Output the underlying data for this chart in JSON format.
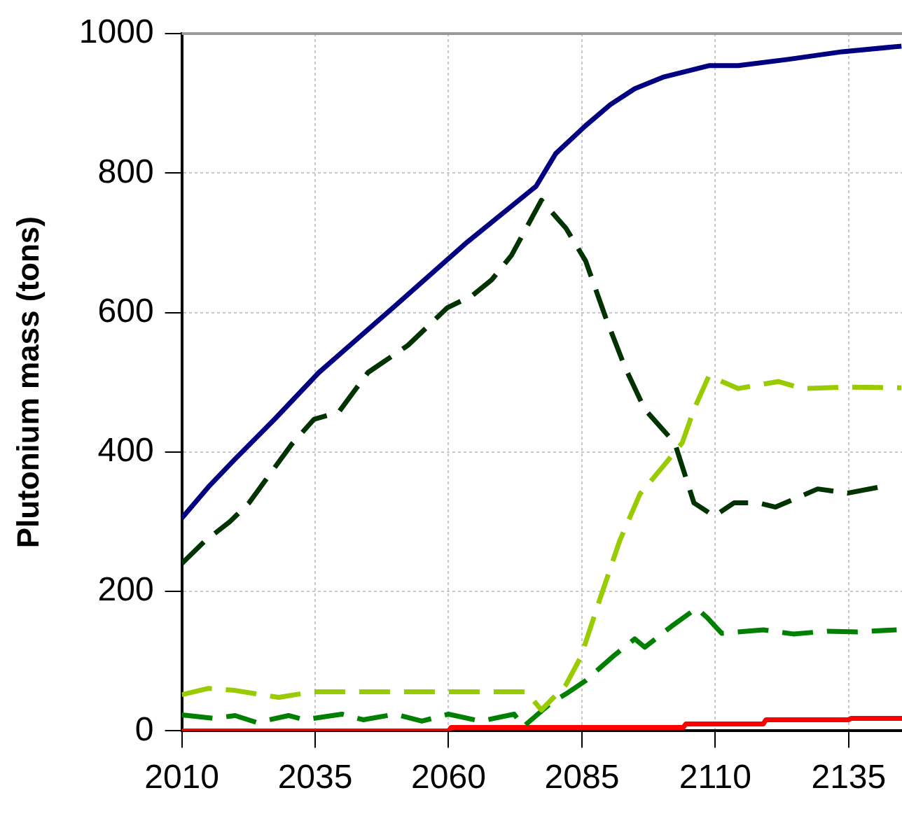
{
  "chart_data": {
    "type": "line",
    "ylabel": "Plutonium mass (tons)",
    "xlim": [
      2010,
      2145
    ],
    "xticks": [
      2010,
      2035,
      2060,
      2085,
      2110,
      2135
    ],
    "ylim": [
      0,
      1000
    ],
    "yticks": [
      0,
      200,
      400,
      600,
      800,
      1000
    ],
    "grid": true,
    "legend": false,
    "marker": "none",
    "x": [
      2010,
      2015,
      2020,
      2027.4,
      2035.7,
      2049.6,
      2063.5,
      2076.4,
      2080.1,
      2085.7,
      2090.3,
      2094.9,
      2100.4,
      2108.8,
      2114.3,
      2123.6,
      2133.8,
      2144.9
    ],
    "series": [
      {
        "color": "#000080",
        "line_style": "solid",
        "values": [
          305,
          350,
          390,
          447,
          514,
          607,
          701,
          781,
          828,
          868,
          898,
          921,
          938,
          954,
          954,
          963,
          974,
          982
        ]
      },
      {
        "color": "#003300",
        "line_style": "dashed",
        "x": [
          2010,
          2014.3,
          2019,
          2022.6,
          2026.4,
          2030.6,
          2034.8,
          2039.4,
          2044.9,
          2052.4,
          2059.8,
          2064.4,
          2068.1,
          2071.8,
          2077.4,
          2082,
          2085.7,
          2089.4,
          2093.1,
          2096.8,
          2102.4,
          2106,
          2109.8,
          2113.5,
          2118,
          2121.3,
          2129.2,
          2134.8,
          2141.7
        ],
        "values": [
          240,
          272,
          300,
          327,
          367,
          411,
          447,
          457,
          514,
          553,
          607,
          624,
          647,
          682,
          761,
          721,
          674,
          594,
          521,
          461,
          413,
          327,
          308,
          327,
          327,
          321,
          347,
          341,
          351
        ]
      },
      {
        "color": "#99cc00",
        "line_style": "dashed",
        "x": [
          2010,
          2015,
          2020,
          2028.2,
          2034.4,
          2040,
          2074.6,
          2077.4,
          2082,
          2084.8,
          2088.5,
          2092.1,
          2095.9,
          2100.4,
          2103.8,
          2106,
          2108.8,
          2114.3,
          2121.8,
          2126.4,
          2133.8,
          2144.9
        ],
        "values": [
          52,
          61,
          58,
          48,
          56,
          56,
          56,
          30,
          66,
          106,
          192,
          273,
          340,
          381,
          413,
          461,
          509,
          491,
          501,
          491,
          493,
          492
        ]
      },
      {
        "color": "#008000",
        "line_style": "dashed",
        "x": [
          2010,
          2016,
          2020,
          2024.1,
          2030,
          2033,
          2040,
          2044,
          2050,
          2055,
          2060,
          2066,
          2072.3,
          2074,
          2079.2,
          2082,
          2085.7,
          2090.7,
          2094.9,
          2096.8,
          2101.8,
          2106.5,
          2108.4,
          2111.2,
          2119,
          2124.6,
          2131.1,
          2136.7,
          2144
        ],
        "values": [
          23,
          18,
          22,
          12,
          22,
          16,
          24,
          16,
          24,
          14,
          24,
          14,
          24,
          6,
          40,
          53,
          72,
          106,
          132,
          120,
          150,
          176,
          163,
          140,
          145,
          139,
          143,
          142,
          145
        ]
      },
      {
        "color": "#ff0000",
        "line_style": "solid",
        "x": [
          2010,
          2060,
          2060.5,
          2104,
          2104.5,
          2119,
          2119.5,
          2135,
          2135.5,
          2145
        ],
        "values": [
          0,
          0,
          5,
          5,
          10,
          10,
          16,
          16,
          18,
          18
        ]
      }
    ]
  }
}
